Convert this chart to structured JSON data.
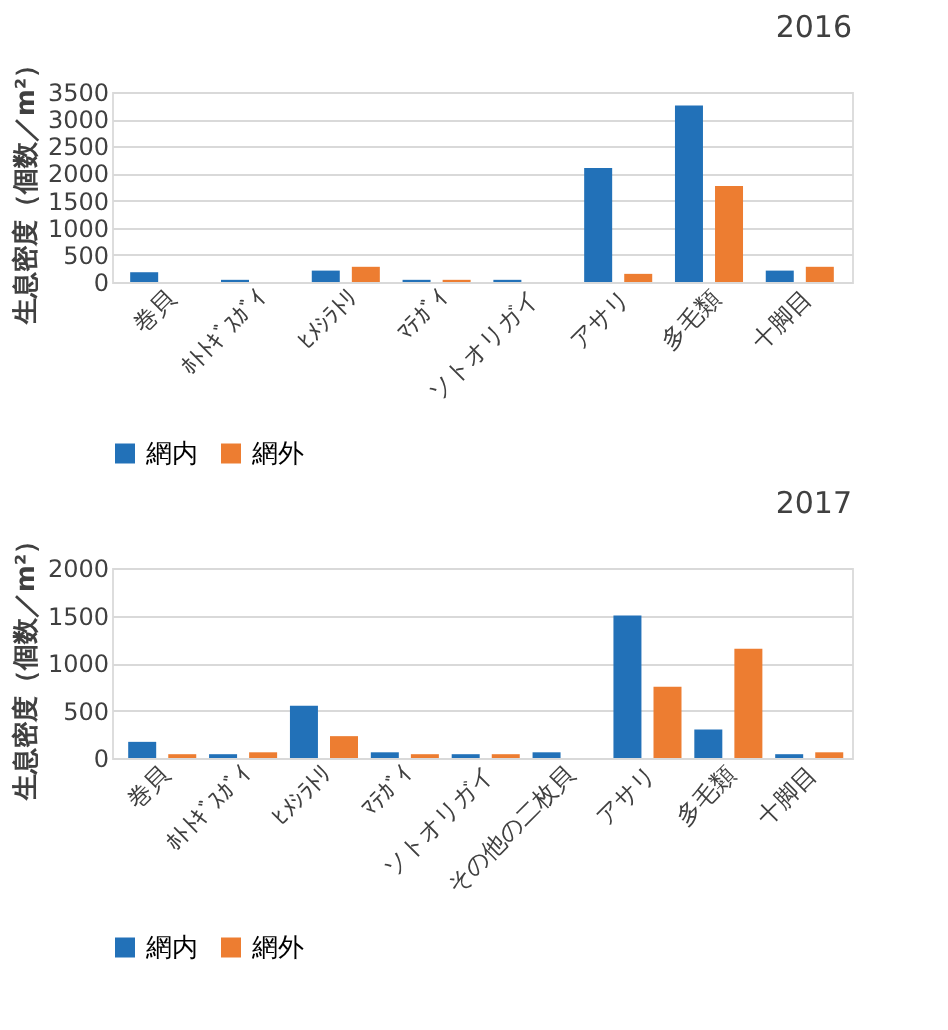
{
  "chart_data": [
    {
      "type": "bar",
      "title": "2016",
      "ylabel": "生息密度（個数／m²）",
      "categories": [
        "巻貝",
        "ﾎﾄﾄｷﾞｽｶﾞｲ",
        "ﾋﾒｼﾗﾄﾘ",
        "ﾏﾃｶﾞｲ",
        "ソトオリガイ",
        "アサリ",
        "多毛類",
        "十脚目"
      ],
      "series": [
        {
          "name": "網内",
          "color": "#2271b8",
          "values": [
            180,
            40,
            210,
            40,
            40,
            2100,
            3250,
            210
          ]
        },
        {
          "name": "網外",
          "color": "#ed7d31",
          "values": [
            0,
            0,
            280,
            40,
            0,
            150,
            1770,
            280
          ]
        }
      ],
      "ylim": [
        0,
        3500
      ],
      "yticks": [
        0,
        500,
        1000,
        1500,
        2000,
        2500,
        3000,
        3500
      ],
      "grid": "y",
      "legend": "bottom"
    },
    {
      "type": "bar",
      "title": "2017",
      "ylabel": "生息密度（個数／m²）",
      "categories": [
        "巻貝",
        "ﾎﾄﾄｷﾞｽｶﾞｲ",
        "ﾋﾒｼﾗﾄﾘ",
        "ﾏﾃｶﾞｲ",
        "ソトオリガイ",
        "その他の二枚貝",
        "アサリ",
        "多毛類",
        "十脚目"
      ],
      "series": [
        {
          "name": "網内",
          "color": "#2271b8",
          "values": [
            170,
            40,
            550,
            60,
            40,
            60,
            1500,
            300,
            40
          ]
        },
        {
          "name": "網外",
          "color": "#ed7d31",
          "values": [
            40,
            60,
            230,
            40,
            40,
            0,
            750,
            1150,
            60
          ]
        }
      ],
      "ylim": [
        0,
        2000
      ],
      "yticks": [
        0,
        500,
        1000,
        1500,
        2000
      ],
      "grid": "y",
      "legend": "bottom"
    }
  ]
}
